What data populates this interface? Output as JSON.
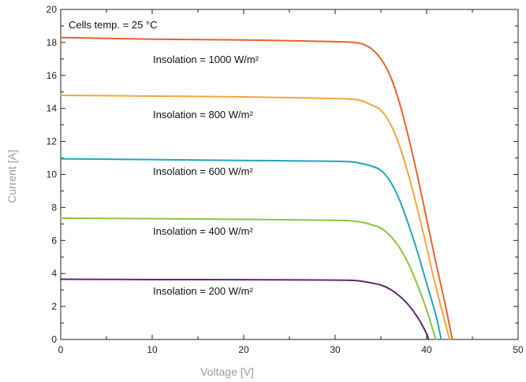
{
  "chart_data": {
    "type": "line",
    "xlabel": "Voltage [V]",
    "ylabel": "Current [A]",
    "xlim": [
      0,
      50
    ],
    "ylim": [
      0,
      20
    ],
    "x_major_ticks": [
      0,
      10,
      20,
      30,
      40,
      50
    ],
    "y_major_ticks": [
      0,
      2,
      4,
      6,
      8,
      10,
      12,
      14,
      16,
      18,
      20
    ],
    "grid": false,
    "annotations": {
      "temp": "Cells temp. = 25 °C",
      "series_labels": [
        "Insolation = 1000 W/m²",
        "Insolation = 800 W/m²",
        "Insolation = 600 W/m²",
        "Insolation = 400 W/m²",
        "Insolation = 200 W/m²"
      ]
    },
    "series": [
      {
        "color": "#e8622c",
        "points": [
          [
            0,
            18.3
          ],
          [
            10,
            18.2
          ],
          [
            20,
            18.15
          ],
          [
            30,
            18.05
          ],
          [
            32,
            18.0
          ],
          [
            33,
            17.9
          ],
          [
            34,
            17.6
          ],
          [
            35,
            17.0
          ],
          [
            36,
            16.0
          ],
          [
            37,
            14.4
          ],
          [
            38,
            12.3
          ],
          [
            39,
            9.9
          ],
          [
            40,
            7.3
          ],
          [
            41,
            4.7
          ],
          [
            42,
            2.2
          ],
          [
            42.8,
            0
          ]
        ]
      },
      {
        "color": "#f5a53a",
        "points": [
          [
            0,
            14.8
          ],
          [
            10,
            14.75
          ],
          [
            20,
            14.7
          ],
          [
            30,
            14.6
          ],
          [
            32,
            14.55
          ],
          [
            33,
            14.45
          ],
          [
            34,
            14.2
          ],
          [
            35,
            13.9
          ],
          [
            36,
            13.1
          ],
          [
            37,
            11.8
          ],
          [
            38,
            10.0
          ],
          [
            39,
            7.9
          ],
          [
            40,
            5.6
          ],
          [
            41,
            3.2
          ],
          [
            42.5,
            0
          ]
        ]
      },
      {
        "color": "#22a6b8",
        "points": [
          [
            0,
            10.95
          ],
          [
            10,
            10.9
          ],
          [
            20,
            10.85
          ],
          [
            30,
            10.8
          ],
          [
            32,
            10.75
          ],
          [
            33,
            10.65
          ],
          [
            34,
            10.5
          ],
          [
            35,
            10.25
          ],
          [
            36,
            9.6
          ],
          [
            37,
            8.5
          ],
          [
            38,
            7.0
          ],
          [
            39,
            5.3
          ],
          [
            40,
            3.4
          ],
          [
            41,
            1.5
          ],
          [
            41.6,
            0
          ]
        ]
      },
      {
        "color": "#8cc63f",
        "points": [
          [
            0,
            7.35
          ],
          [
            10,
            7.32
          ],
          [
            20,
            7.28
          ],
          [
            30,
            7.22
          ],
          [
            32,
            7.18
          ],
          [
            33,
            7.1
          ],
          [
            34,
            6.95
          ],
          [
            35,
            6.75
          ],
          [
            36,
            6.3
          ],
          [
            37,
            5.6
          ],
          [
            38,
            4.6
          ],
          [
            39,
            3.3
          ],
          [
            40,
            1.8
          ],
          [
            41,
            0
          ]
        ]
      },
      {
        "color": "#5a2d6b",
        "points": [
          [
            0,
            3.65
          ],
          [
            10,
            3.63
          ],
          [
            20,
            3.62
          ],
          [
            30,
            3.6
          ],
          [
            32,
            3.58
          ],
          [
            33,
            3.52
          ],
          [
            34,
            3.42
          ],
          [
            35,
            3.3
          ],
          [
            36,
            3.05
          ],
          [
            37,
            2.65
          ],
          [
            38,
            2.1
          ],
          [
            39,
            1.35
          ],
          [
            40,
            0.35
          ],
          [
            40.2,
            0
          ]
        ]
      }
    ]
  }
}
